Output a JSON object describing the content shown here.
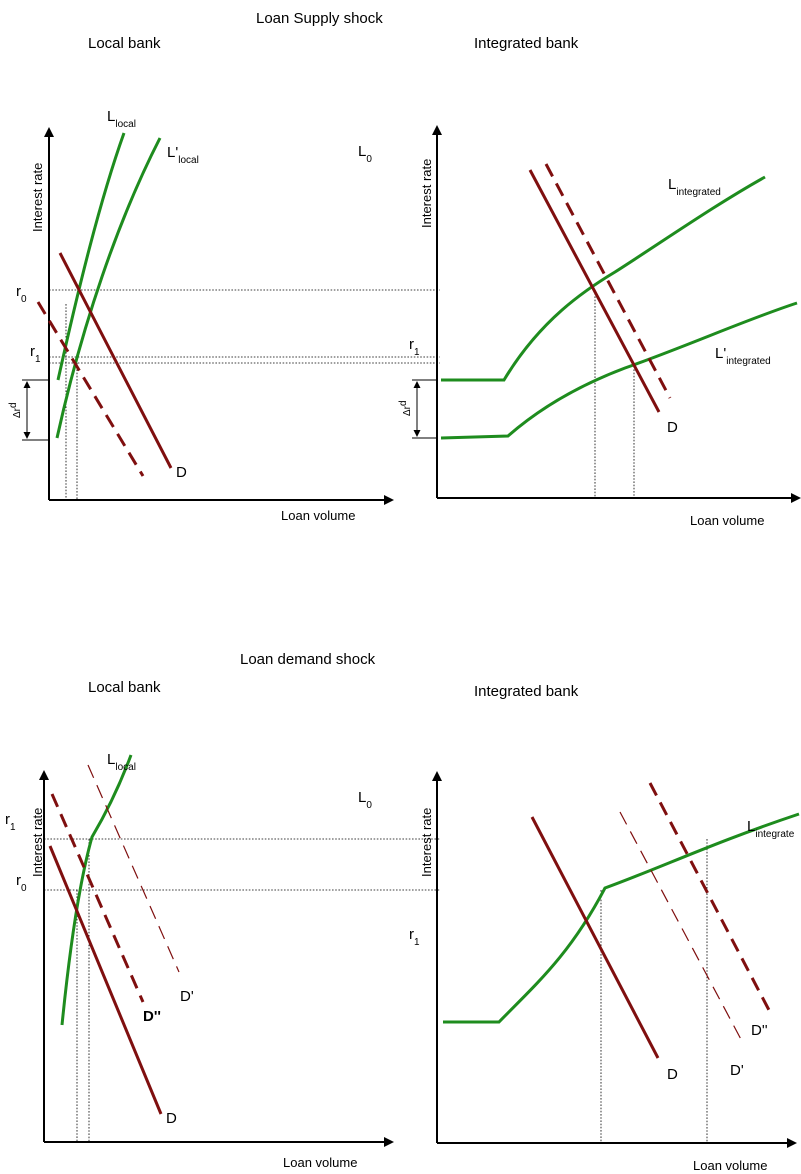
{
  "colors": {
    "supply_curve": "#1e8c1e",
    "demand_curve": "#7f0f0f",
    "axis": "#000000"
  },
  "sections": [
    {
      "title": "Loan Supply shock",
      "panels": [
        {
          "label": "Local bank",
          "y_axis": "Interest rate",
          "x_axis": "Loan volume",
          "marks": {
            "r0": "r",
            "r0_sub": "0",
            "r1": "r",
            "r1_sub": "1",
            "delta": "Δr",
            "delta_sup": "d"
          },
          "curves": {
            "L_main": "L",
            "L_main_sub": "local",
            "L_shift": "L'",
            "L_shift_sub": "local",
            "D": "D"
          }
        },
        {
          "label": "Integrated bank",
          "y_axis": "Interest rate",
          "x_axis": "Loan volume",
          "marks": {
            "L0": "L",
            "L0_sub": "0",
            "r1": "r",
            "r1_sub": "1",
            "delta": "Δr",
            "delta_sup": "d"
          },
          "curves": {
            "L_main": "L",
            "L_main_sub": "integrated",
            "L_shift": "L'",
            "L_shift_sub": "integrated",
            "D": "D"
          }
        }
      ]
    },
    {
      "title": "Loan demand shock",
      "panels": [
        {
          "label": "Local bank",
          "y_axis": "Interest rate",
          "x_axis": "Loan volume",
          "marks": {
            "r1": "r",
            "r1_sub": "1",
            "r0": "r",
            "r0_sub": "0"
          },
          "curves": {
            "L_main": "L",
            "L_main_sub": "local",
            "D": "D",
            "D1": "D'",
            "D2": "D''"
          }
        },
        {
          "label": "Integrated bank",
          "y_axis": "Interest rate",
          "x_axis": "Loan volume",
          "marks": {
            "L0": "L",
            "L0_sub": "0",
            "r1": "r",
            "r1_sub": "1"
          },
          "curves": {
            "L_main": "L",
            "L_main_sub": "integrate",
            "D": "D",
            "D1": "D'",
            "D2": "D''"
          }
        }
      ]
    }
  ]
}
